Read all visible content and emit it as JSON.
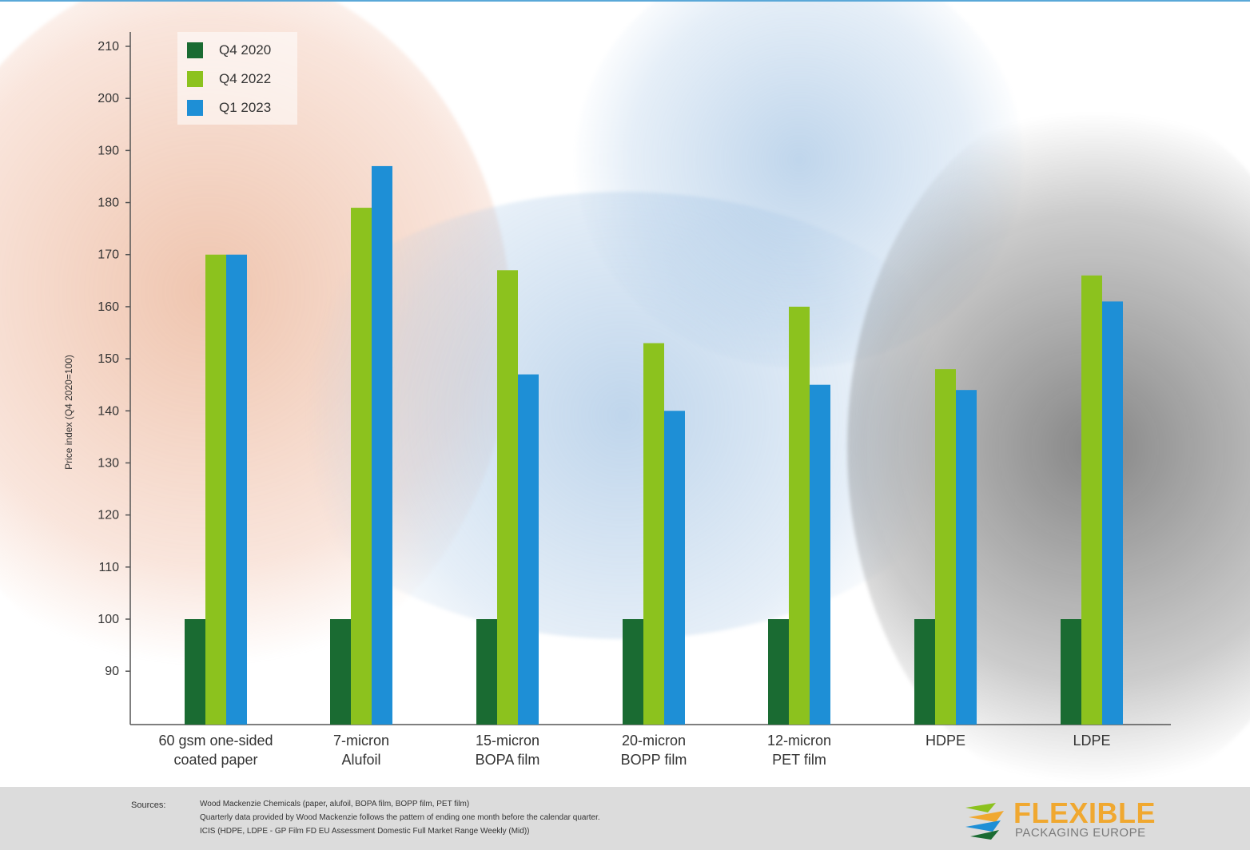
{
  "chart_data": {
    "type": "bar",
    "xlabel": "",
    "ylabel": "Price index (Q4 2020=100)",
    "ylim": [
      80,
      212
    ],
    "yticks": [
      90,
      100,
      110,
      120,
      130,
      140,
      150,
      160,
      170,
      180,
      190,
      200,
      210
    ],
    "categories": [
      [
        "60 gsm one-sided",
        "coated paper"
      ],
      [
        "7-micron",
        "Alufoil"
      ],
      [
        "15-micron",
        "BOPA film"
      ],
      [
        "20-micron",
        "BOPP film"
      ],
      [
        "12-micron",
        "PET film"
      ],
      [
        "HDPE"
      ],
      [
        "LDPE"
      ]
    ],
    "series": [
      {
        "name": "Q4 2020",
        "color": "#1a6b32",
        "values": [
          100,
          100,
          100,
          100,
          100,
          100,
          100
        ]
      },
      {
        "name": "Q4 2022",
        "color": "#8cc21e",
        "values": [
          170,
          179,
          167,
          153,
          160,
          148,
          166
        ]
      },
      {
        "name": "Q1 2023",
        "color": "#1e8fd6",
        "values": [
          170,
          187,
          147,
          140,
          145,
          144,
          161
        ]
      }
    ],
    "legend_position": "top-left",
    "grid": false
  },
  "footer": {
    "sources_title": "Sources:",
    "source_lines": [
      "Wood Mackenzie Chemicals (paper, alufoil, BOPA film, BOPP film, PET film)",
      "Quarterly data provided by Wood Mackenzie follows the pattern of ending one month before the calendar quarter.",
      "ICIS (HDPE, LDPE - GP Film FD EU Assessment Domestic Full Market Range Weekly (Mid))"
    ],
    "logo_line1": "FLEXIBLE",
    "logo_line2": "PACKAGING EUROPE",
    "logo_colors": [
      "#f0a830",
      "#8cc21e",
      "#1e8fd6",
      "#1a6b32"
    ]
  }
}
